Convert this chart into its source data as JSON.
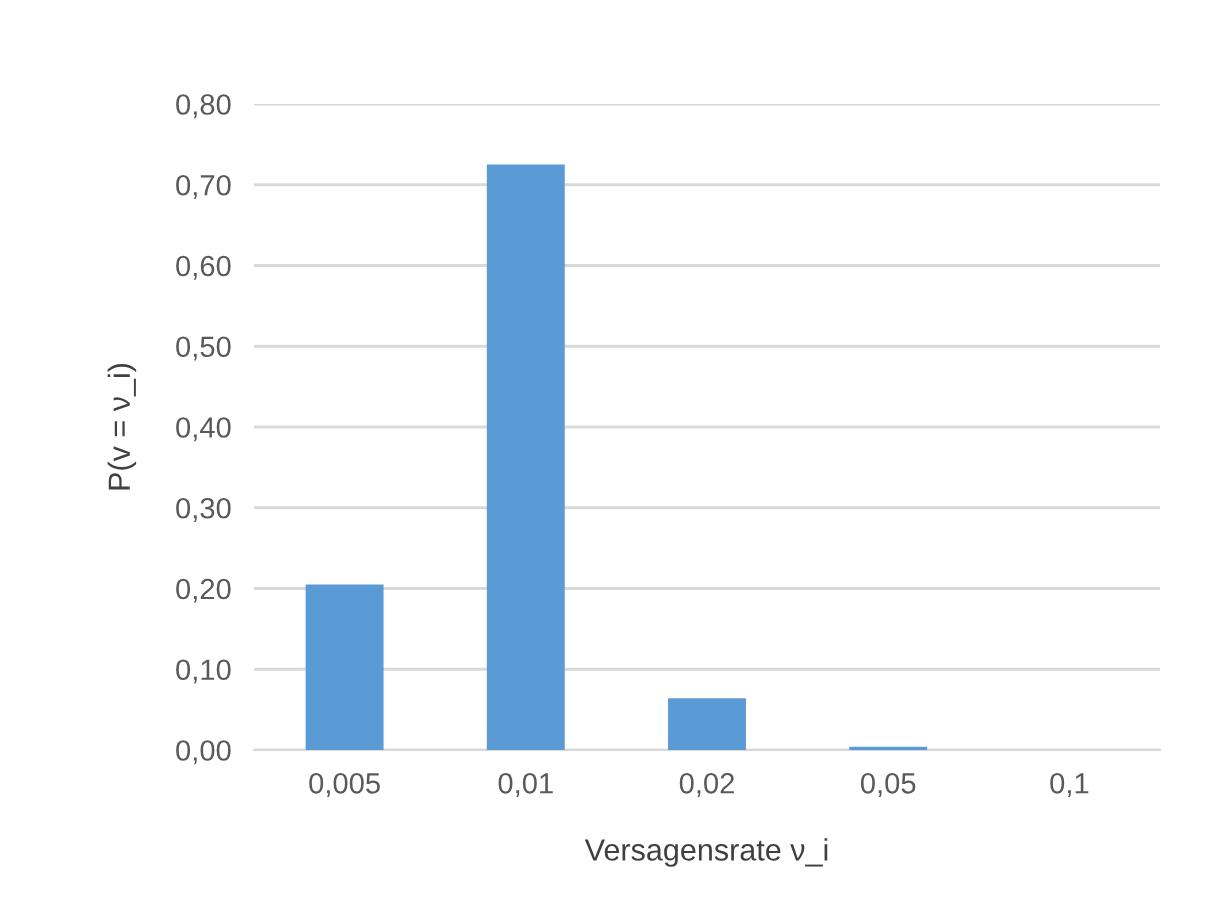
{
  "chart_data": {
    "type": "bar",
    "xlabel": "Versagensrate ν_i",
    "ylabel": "P(v = ν_i)",
    "categories": [
      "0,005",
      "0,01",
      "0,02",
      "0,05",
      "0,1"
    ],
    "values": [
      0.205,
      0.725,
      0.064,
      0.004,
      0.0
    ],
    "color": "#5b9bd5",
    "ylim": [
      0,
      0.8
    ],
    "yticks": [
      {
        "value": 0,
        "label": "0,00"
      },
      {
        "value": 0.1,
        "label": "0,10"
      },
      {
        "value": 0.2,
        "label": "0,20"
      },
      {
        "value": 0.3,
        "label": "0,30"
      },
      {
        "value": 0.4,
        "label": "0,40"
      },
      {
        "value": 0.5,
        "label": "0,50"
      },
      {
        "value": 0.6,
        "label": "0,60"
      },
      {
        "value": 0.7,
        "label": "0,70"
      },
      {
        "value": 0.8,
        "label": "0,80"
      }
    ],
    "grid": "y"
  }
}
